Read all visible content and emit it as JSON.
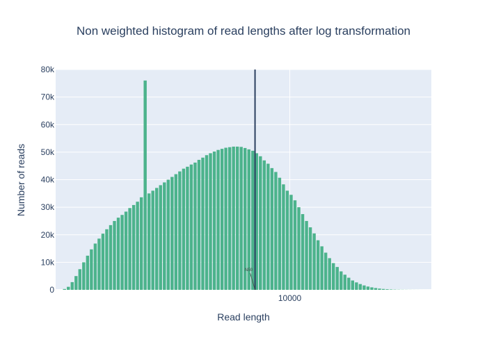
{
  "chart_data": {
    "type": "bar",
    "title": "Non weighted histogram of read lengths after log transformation",
    "xlabel": "Read length",
    "ylabel": "Number of reads",
    "x_scale": "log",
    "xlim": [
      400,
      70000
    ],
    "ylim": [
      0,
      80000
    ],
    "y_ticks": [
      0,
      10000,
      20000,
      30000,
      40000,
      50000,
      60000,
      70000,
      80000
    ],
    "y_tick_labels": [
      "0",
      "10k",
      "20k",
      "30k",
      "40k",
      "50k",
      "60k",
      "70k",
      "80k"
    ],
    "x_ticks": [
      10000
    ],
    "x_tick_labels": [
      "10000"
    ],
    "grid": true,
    "legend": "none",
    "bar_color": "#4cb38c",
    "plot_bg": "#e5ecf6",
    "series": [
      {
        "x_start": 440,
        "x_end": 70000,
        "values": [
          300,
          1100,
          2800,
          5000,
          7500,
          10000,
          12400,
          14700,
          16800,
          18600,
          20400,
          22000,
          23500,
          25000,
          26200,
          27200,
          28400,
          29700,
          30800,
          32000,
          33600,
          76000,
          35000,
          36000,
          37000,
          38000,
          39000,
          40000,
          41000,
          42000,
          43000,
          44000,
          44700,
          45500,
          46200,
          47200,
          48000,
          48900,
          49600,
          50200,
          50800,
          51200,
          51600,
          51800,
          52000,
          52000,
          51900,
          51500,
          51000,
          50500,
          49600,
          48500,
          47000,
          45800,
          44200,
          42800,
          40700,
          38300,
          36000,
          34500,
          32500,
          30000,
          27500,
          25000,
          22700,
          20500,
          18000,
          15800,
          13500,
          11500,
          9700,
          8300,
          6700,
          5500,
          4400,
          3400,
          2700,
          2100,
          1600,
          1200,
          900,
          650,
          450,
          320,
          220,
          150,
          100,
          70,
          50,
          35,
          25,
          15,
          10,
          5,
          3,
          2
        ]
      }
    ],
    "vline": {
      "x": 6200,
      "label": "N50",
      "color": "#2a3f5f"
    }
  }
}
